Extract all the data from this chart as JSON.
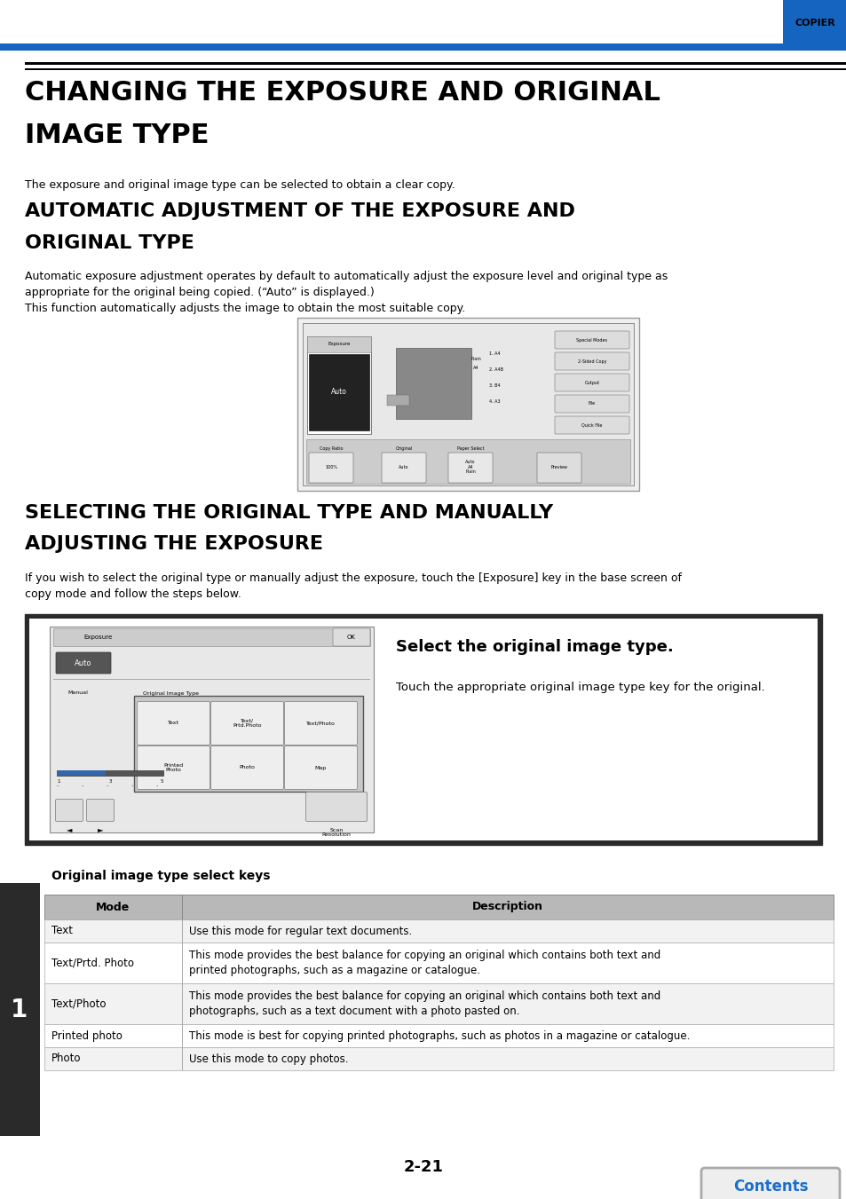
{
  "page_width": 9.54,
  "page_height": 13.51,
  "dpi": 100,
  "bg_color": "#ffffff",
  "blue_color": "#1a6ecc",
  "header_blue": "#1565C0",
  "black": "#000000",
  "dark_gray": "#333333",
  "mid_gray": "#aaaaaa",
  "light_gray": "#e0e0e0",
  "copier_label": "COPIER",
  "title1_line1": "CHANGING THE EXPOSURE AND ORIGINAL",
  "title1_line2": "IMAGE TYPE",
  "intro_text": "The exposure and original image type can be selected to obtain a clear copy.",
  "section2_title_line1": "AUTOMATIC ADJUSTMENT OF THE EXPOSURE AND",
  "section2_title_line2": "ORIGINAL TYPE",
  "section2_body": "Automatic exposure adjustment operates by default to automatically adjust the exposure level and original type as\nappropriate for the original being copied. (“Auto” is displayed.)\nThis function automatically adjusts the image to obtain the most suitable copy.",
  "section3_title_line1": "SELECTING THE ORIGINAL TYPE AND MANUALLY",
  "section3_title_line2": "ADJUSTING THE EXPOSURE",
  "section3_body": "If you wish to select the original type or manually adjust the exposure, touch the [Exposure] key in the base screen of\ncopy mode and follow the steps below.",
  "step1_title": "Select the original image type.",
  "step1_body": "Touch the appropriate original image type key for the original.",
  "table_title": "Original image type select keys",
  "table_header": [
    "Mode",
    "Description"
  ],
  "table_rows": [
    [
      "Text",
      "Use this mode for regular text documents."
    ],
    [
      "Text/Prtd. Photo",
      "This mode provides the best balance for copying an original which contains both text and\nprinted photographs, such as a magazine or catalogue."
    ],
    [
      "Text/Photo",
      "This mode provides the best balance for copying an original which contains both text and\nphotographs, such as a text document with a photo pasted on."
    ],
    [
      "Printed photo",
      "This mode is best for copying printed photographs, such as photos in a magazine or catalogue."
    ],
    [
      "Photo",
      "Use this mode to copy photos."
    ]
  ],
  "page_number": "2-21",
  "contents_label": "Contents",
  "side_number": "1"
}
